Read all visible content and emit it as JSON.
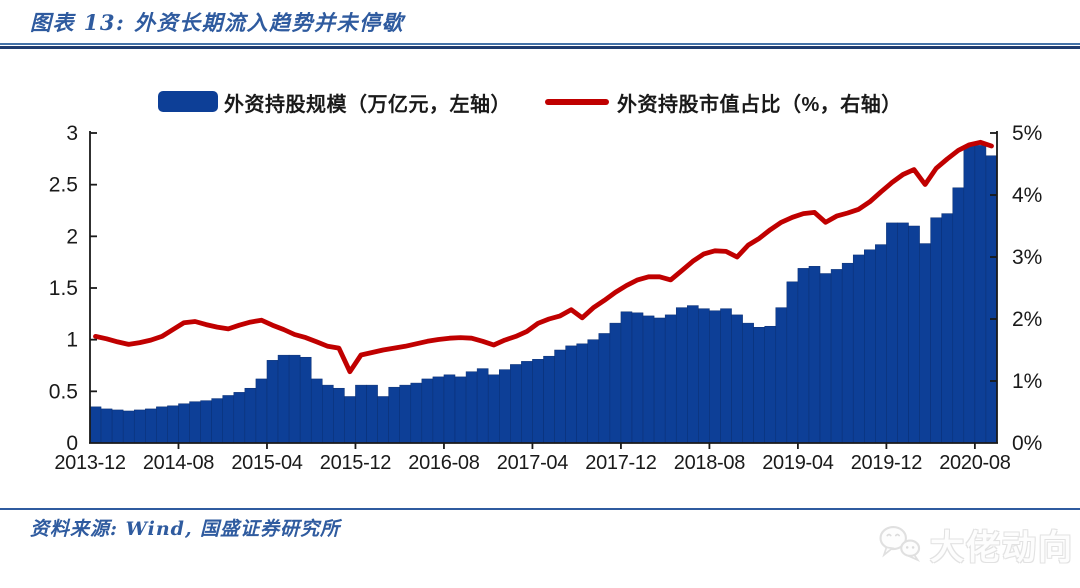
{
  "figure": {
    "title": "图表 13: 外资长期流入趋势并未停歇",
    "source": "资料来源: Wind, 国盛证券研究所",
    "watermark_text": "大佬动向"
  },
  "legend": [
    {
      "label": "外资持股规模（万亿元，左轴）",
      "swatch": "bar",
      "color": "#0d3f97"
    },
    {
      "label": "外资持股市值占比（%，右轴）",
      "swatch": "line",
      "color": "#c00000"
    }
  ],
  "chart_data": {
    "type": "bar+line combo",
    "frequency": "monthly",
    "x_start": "2013-12",
    "x_end": "2020-09",
    "x_tick_labels": [
      "2013-12",
      "2014-08",
      "2015-04",
      "2015-12",
      "2016-08",
      "2017-04",
      "2017-12",
      "2018-08",
      "2019-04",
      "2019-12",
      "2020-08"
    ],
    "x_tick_interval_months": 8,
    "y_left": {
      "min": 0,
      "max": 3,
      "tick_labels": [
        "0",
        "0.5",
        "1",
        "1.5",
        "2",
        "2.5",
        "3"
      ]
    },
    "y_right": {
      "min": 0,
      "max": 5,
      "tick_labels": [
        "0%",
        "1%",
        "2%",
        "3%",
        "4%",
        "5%"
      ]
    },
    "grid": false,
    "background": "#ffffff",
    "axis_color": "#1a1a1a",
    "series": [
      {
        "name": "外资持股规模（万亿元，左轴）",
        "type": "bar",
        "axis": "left",
        "color": "#0d3f97",
        "values": [
          0.35,
          0.33,
          0.32,
          0.31,
          0.32,
          0.33,
          0.35,
          0.36,
          0.38,
          0.4,
          0.41,
          0.43,
          0.46,
          0.49,
          0.53,
          0.62,
          0.8,
          0.85,
          0.85,
          0.83,
          0.62,
          0.56,
          0.53,
          0.45,
          0.56,
          0.56,
          0.45,
          0.54,
          0.56,
          0.58,
          0.62,
          0.64,
          0.66,
          0.64,
          0.69,
          0.72,
          0.66,
          0.71,
          0.76,
          0.79,
          0.81,
          0.84,
          0.9,
          0.94,
          0.96,
          1.0,
          1.06,
          1.16,
          1.27,
          1.26,
          1.23,
          1.21,
          1.24,
          1.31,
          1.33,
          1.3,
          1.28,
          1.3,
          1.24,
          1.16,
          1.12,
          1.13,
          1.31,
          1.56,
          1.69,
          1.71,
          1.64,
          1.68,
          1.74,
          1.82,
          1.87,
          1.92,
          2.13,
          2.13,
          2.1,
          1.93,
          2.18,
          2.22,
          2.47,
          2.88,
          2.88,
          2.78
        ]
      },
      {
        "name": "外资持股市值占比（%，右轴）",
        "type": "line",
        "axis": "right",
        "color": "#c00000",
        "values": [
          1.72,
          1.68,
          1.63,
          1.59,
          1.62,
          1.66,
          1.72,
          1.83,
          1.94,
          1.96,
          1.91,
          1.87,
          1.84,
          1.9,
          1.95,
          1.98,
          1.9,
          1.83,
          1.75,
          1.7,
          1.63,
          1.56,
          1.53,
          1.15,
          1.42,
          1.46,
          1.5,
          1.53,
          1.56,
          1.6,
          1.64,
          1.67,
          1.69,
          1.7,
          1.69,
          1.64,
          1.58,
          1.66,
          1.72,
          1.8,
          1.93,
          2.0,
          2.05,
          2.15,
          2.02,
          2.18,
          2.3,
          2.43,
          2.54,
          2.63,
          2.68,
          2.68,
          2.63,
          2.78,
          2.93,
          3.05,
          3.1,
          3.09,
          3.0,
          3.19,
          3.3,
          3.44,
          3.56,
          3.64,
          3.7,
          3.72,
          3.56,
          3.66,
          3.71,
          3.77,
          3.89,
          4.05,
          4.2,
          4.33,
          4.41,
          4.17,
          4.43,
          4.58,
          4.72,
          4.81,
          4.85,
          4.79
        ]
      }
    ]
  }
}
